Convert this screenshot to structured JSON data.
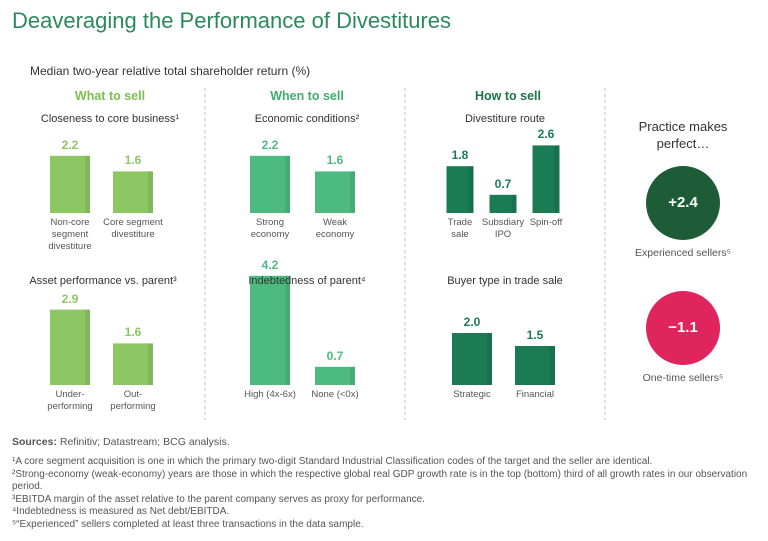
{
  "header": {
    "title": "Deaveraging the Performance of Divestitures",
    "subtitle": "Median two-year relative total shareholder return (%)"
  },
  "columns": [
    {
      "label": "What to sell",
      "color": "#7cbf4f"
    },
    {
      "label": "When to sell",
      "color": "#3daf6c"
    },
    {
      "label": "How to sell",
      "color": "#1b7349"
    }
  ],
  "chart_data": [
    {
      "type": "bar",
      "title": "Closeness to core business¹",
      "categories": [
        "Non-core segment divestiture",
        "Core segment divestiture"
      ],
      "values": [
        2.2,
        1.6
      ],
      "color": "#8cc763"
    },
    {
      "type": "bar",
      "title": "Economic conditions²",
      "categories": [
        "Strong economy",
        "Weak economy"
      ],
      "values": [
        2.2,
        1.6
      ],
      "color": "#4dbb7f"
    },
    {
      "type": "bar",
      "title": "Divestiture route",
      "categories": [
        "Trade sale",
        "Subsdiary IPO",
        "Spin-off"
      ],
      "values": [
        1.8,
        0.7,
        2.6
      ],
      "color": "#1a7b55"
    },
    {
      "type": "bar",
      "title": "Asset performance vs. parent³",
      "categories": [
        "Under-performing",
        "Out-performing"
      ],
      "values": [
        2.9,
        1.6
      ],
      "color": "#8cc763"
    },
    {
      "type": "bar",
      "title": "Indebtedness of parent⁴",
      "categories": [
        "High (4x-6x)",
        "None (<0x)"
      ],
      "values": [
        4.2,
        0.7
      ],
      "color": "#4dbb7f"
    },
    {
      "type": "bar",
      "title": "Buyer type in trade sale",
      "categories": [
        "Strategic",
        "Financial"
      ],
      "values": [
        2.0,
        1.5
      ],
      "value_labels": [
        "2.0",
        "1.5"
      ],
      "color": "#1a7b55"
    }
  ],
  "practice": {
    "title": "Practice makes perfect…",
    "items": [
      {
        "value": "+2.4",
        "label": "Experienced sellers⁵",
        "color": "#1e5c37"
      },
      {
        "value": "−1.1",
        "label": "One-time sellers⁵",
        "color": "#e0245e"
      }
    ]
  },
  "sources": {
    "label": "Sources:",
    "text": "Refinitiv; Datastream; BCG analysis."
  },
  "footnotes": [
    "¹A core segment acquisition is one in which the primary two-digit Standard Industrial Classification codes of the target and the seller are identical.",
    "²Strong-economy (weak-economy) years are those in which the respective global real GDP growth rate is in the top (bottom) third of all growth rates in our observation period.",
    "³EBITDA margin of the asset relative to the parent company serves as proxy for performance.",
    "⁴Indebtedness is measured as Net debt/EBITDA.",
    "⁵“Experienced” sellers completed at least three transactions in the data sample."
  ]
}
